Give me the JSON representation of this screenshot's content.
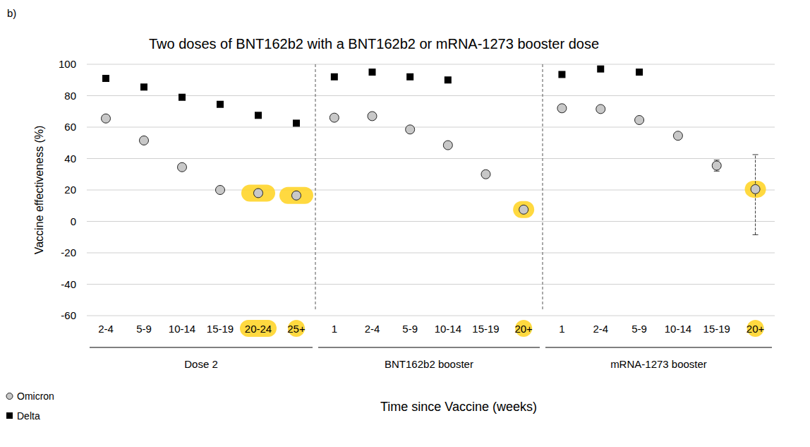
{
  "chart_data": {
    "type": "scatter",
    "title": "Two doses of BNT162b2 with a BNT162b2 or mRNA-1273 booster dose",
    "annotations": [
      "b)"
    ],
    "x_label": "Time since Vaccine (weeks)",
    "y_label": "Vaccine effectiveness (%)",
    "categories": [
      "2-4",
      "5-9",
      "10-14",
      "15-19",
      "20-24",
      "25+",
      "1",
      "2-4",
      "5-9",
      "10-14",
      "15-19",
      "20+",
      "1",
      "2-4",
      "5-9",
      "10-14",
      "15-19",
      "20+"
    ],
    "groups": [
      {
        "name": "Dose 2",
        "categories": 6
      },
      {
        "name": "BNT162b2 booster",
        "categories": 6
      },
      {
        "name": "mRNA-1273 booster",
        "categories": 6
      }
    ],
    "series": [
      {
        "name": "Omicron",
        "color": "#c8c8c8",
        "marker": "circle",
        "values": [
          65.5,
          51.5,
          34.5,
          20,
          18,
          16.5,
          66,
          67,
          58.5,
          48.5,
          30,
          7.5,
          72,
          71.5,
          64.5,
          54.5,
          35.5,
          20.5
        ],
        "ci_low": [
          null,
          null,
          null,
          null,
          null,
          null,
          null,
          null,
          null,
          null,
          null,
          null,
          null,
          null,
          null,
          null,
          32,
          -8.5
        ],
        "ci_high": [
          null,
          null,
          null,
          null,
          null,
          null,
          null,
          null,
          null,
          null,
          null,
          null,
          null,
          null,
          null,
          null,
          39,
          42.5
        ]
      },
      {
        "name": "Delta",
        "color": "#000000",
        "marker": "square",
        "values": [
          91,
          85.5,
          79,
          74.5,
          67.5,
          62.5,
          92,
          95,
          92,
          90,
          null,
          null,
          93.5,
          97,
          95,
          null,
          null,
          null
        ]
      }
    ],
    "ylim": [
      -60,
      100
    ],
    "yticks": [
      -60,
      -40,
      -20,
      0,
      20,
      40,
      60,
      80,
      100
    ],
    "grid": true,
    "legend": "bottom-left"
  }
}
